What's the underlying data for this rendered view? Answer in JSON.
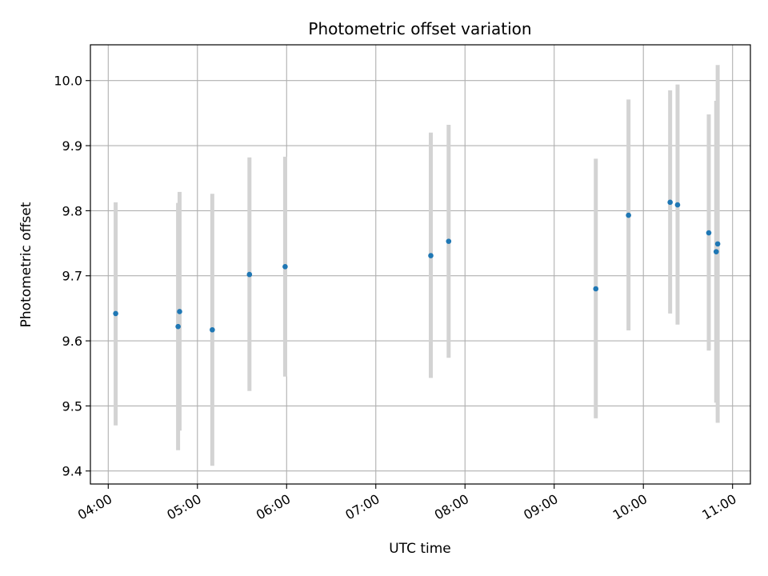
{
  "chart_data": {
    "type": "scatter",
    "title": "Photometric offset variation",
    "xlabel": "UTC time",
    "ylabel": "Photometric offset",
    "xlim": [
      "03:48",
      "11:12"
    ],
    "ylim": [
      9.38,
      10.055
    ],
    "x_ticks": [
      "04:00",
      "05:00",
      "06:00",
      "07:00",
      "08:00",
      "09:00",
      "10:00",
      "11:00"
    ],
    "y_ticks": [
      9.4,
      9.5,
      9.6,
      9.7,
      9.8,
      9.9,
      10.0
    ],
    "y_tick_labels": [
      "9.4",
      "9.5",
      "9.6",
      "9.7",
      "9.8",
      "9.9",
      "10.0"
    ],
    "grid": true,
    "marker_color": "#1f77b4",
    "errorbar_color": "#d3d3d3",
    "points": [
      {
        "time": "04:05",
        "y": 9.642,
        "lo": 9.47,
        "hi": 9.813
      },
      {
        "time": "04:47",
        "y": 9.622,
        "lo": 9.432,
        "hi": 9.812
      },
      {
        "time": "04:48",
        "y": 9.645,
        "lo": 9.462,
        "hi": 9.829
      },
      {
        "time": "05:10",
        "y": 9.617,
        "lo": 9.408,
        "hi": 9.826
      },
      {
        "time": "05:35",
        "y": 9.702,
        "lo": 9.523,
        "hi": 9.882
      },
      {
        "time": "05:59",
        "y": 9.714,
        "lo": 9.545,
        "hi": 9.883
      },
      {
        "time": "07:37",
        "y": 9.731,
        "lo": 9.543,
        "hi": 9.92
      },
      {
        "time": "07:49",
        "y": 9.753,
        "lo": 9.574,
        "hi": 9.932
      },
      {
        "time": "09:28",
        "y": 9.68,
        "lo": 9.481,
        "hi": 9.88
      },
      {
        "time": "09:50",
        "y": 9.793,
        "lo": 9.616,
        "hi": 9.971
      },
      {
        "time": "10:18",
        "y": 9.813,
        "lo": 9.642,
        "hi": 9.985
      },
      {
        "time": "10:23",
        "y": 9.809,
        "lo": 9.625,
        "hi": 9.994
      },
      {
        "time": "10:44",
        "y": 9.766,
        "lo": 9.585,
        "hi": 9.948
      },
      {
        "time": "10:49",
        "y": 9.737,
        "lo": 9.505,
        "hi": 9.969
      },
      {
        "time": "10:50",
        "y": 9.749,
        "lo": 9.474,
        "hi": 10.024
      }
    ]
  }
}
